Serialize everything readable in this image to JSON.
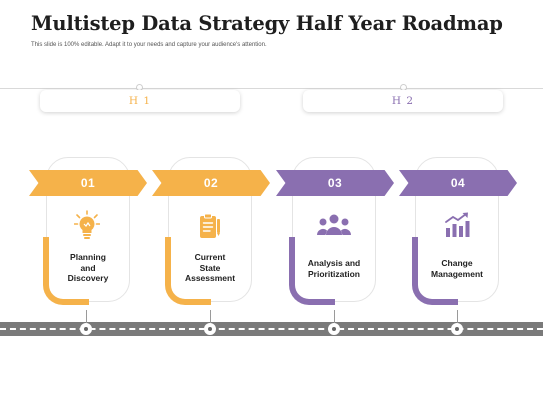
{
  "title": "Multistep Data Strategy Half Year Roadmap",
  "subtitle": "This slide is 100% editable.  Adapt it to your needs and capture your audience's attention.",
  "halves": [
    {
      "label": "H 1",
      "color": "#f5b24a"
    },
    {
      "label": "H 2",
      "color": "#8a6fb0"
    }
  ],
  "colors": {
    "orange": "#f5b24a",
    "purple": "#8a6fb0"
  },
  "steps": [
    {
      "number": "01",
      "label": "Planning\nand\nDiscovery",
      "icon": "lightbulb-icon",
      "color": "#f5b24a"
    },
    {
      "number": "02",
      "label": "Current\nState\nAssessment",
      "icon": "clipboard-icon",
      "color": "#f5b24a"
    },
    {
      "number": "03",
      "label": "Analysis and\nPrioritization",
      "icon": "team-icon",
      "color": "#8a6fb0"
    },
    {
      "number": "04",
      "label": "Change\nManagement",
      "icon": "growth-chart-icon",
      "color": "#8a6fb0"
    }
  ]
}
